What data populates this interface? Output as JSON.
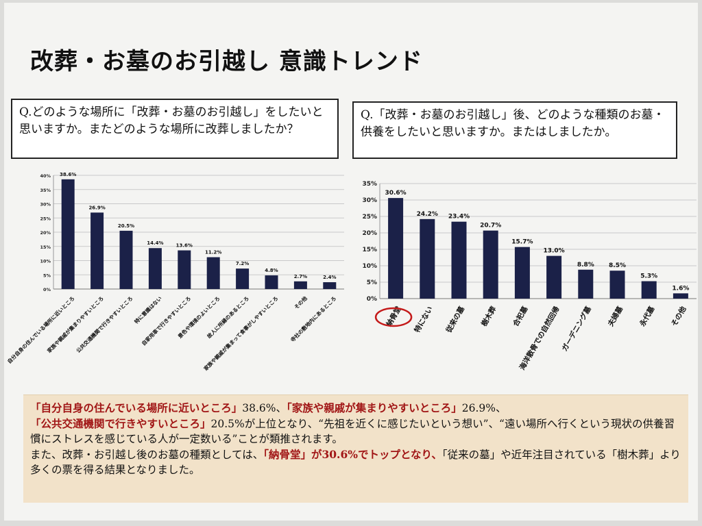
{
  "slide": {
    "title": "改葬・お墓のお引越し 意識トレンド",
    "question_left": "Q.どのような場所に「改葬・お墓のお引越し」をしたいと思いますか。またどのような場所に改葬しましたか？",
    "question_right": "Q.「改葬・お墓のお引越し」後、どのような種類のお墓・供養をしたいと思いますか。またはしましたか。"
  },
  "chart_data": [
    {
      "type": "bar",
      "categories": [
        "自分自身の住んでいる場所に近いところ",
        "家族や親戚が集まりやすいところ",
        "公共交通機関で行きやすいところ",
        "特に意識はない",
        "自家用車で行きやすいところ",
        "景色や環境のよいところ",
        "故人に所縁のあるところ",
        "家族や親戚が集まって食事がしやすいところ",
        "その他",
        "寺社の敷地内にあるところ"
      ],
      "values": [
        38.6,
        26.9,
        20.5,
        14.4,
        13.6,
        11.2,
        7.2,
        4.8,
        2.7,
        2.4
      ],
      "value_labels": [
        "38.6%",
        "26.9%",
        "20.5%",
        "14.4%",
        "13.6%",
        "11.2%",
        "7.2%",
        "4.8%",
        "2.7%",
        "2.4%"
      ],
      "ylim": [
        0,
        40
      ],
      "yticks": [
        "0%",
        "5%",
        "10%",
        "15%",
        "20%",
        "25%",
        "30%",
        "35%",
        "40%"
      ],
      "grid": true,
      "bar_color": "#1b2148"
    },
    {
      "type": "bar",
      "categories": [
        "納骨堂",
        "特にない",
        "従来の墓",
        "樹木葬",
        "合祀墓",
        "海洋散骨での自然回帰",
        "ガーデニング墓",
        "夫婦墓",
        "永代墓",
        "その他"
      ],
      "values": [
        30.6,
        24.2,
        23.4,
        20.7,
        15.7,
        13.0,
        8.8,
        8.5,
        5.3,
        1.6
      ],
      "value_labels": [
        "30.6%",
        "24.2%",
        "23.4%",
        "20.7%",
        "15.7%",
        "13.0%",
        "8.8%",
        "8.5%",
        "5.3%",
        "1.6%"
      ],
      "ylim": [
        0,
        35
      ],
      "yticks": [
        "0%",
        "5%",
        "10%",
        "15%",
        "20%",
        "25%",
        "30%",
        "35%"
      ],
      "grid": true,
      "bar_color": "#1b2148",
      "highlight_category": "納骨堂",
      "highlight_color": "#c41a1a"
    }
  ],
  "summary": {
    "hl1": "「自分自身の住んでいる場所に近いところ」",
    "t1": "38.6%、",
    "hl2": "「家族や親戚が集まりやすいところ」",
    "t2": "26.9%、",
    "hl3": "「公共交通機関で行きやすいところ」",
    "t3": "20.5%が上位となり、“先祖を近くに感じたいという想い”、“遠い場所へ行くという現状の供養習慣にストレスを感じている人が一定数いる”ことが類推されます。",
    "t4": "また、改葬・お引越し後のお墓の種類としては、",
    "hl4": "「納骨堂」が30.6%でトップとなり、",
    "t5": "「従来の墓」や近年注目されている「樹木葬」より多くの票を得る結果となりました。"
  }
}
